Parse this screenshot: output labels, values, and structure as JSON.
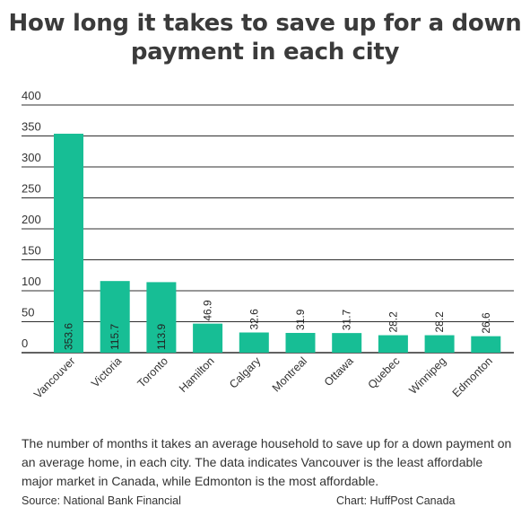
{
  "colors": {
    "bar": "#17be95",
    "grid": "#2f2f2f",
    "text": "#333333"
  },
  "chart_data": {
    "type": "bar",
    "title": "How long it takes to save up for a down payment in each city",
    "categories": [
      "Vancouver",
      "Victoria",
      "Toronto",
      "Hamilton",
      "Calgary",
      "Montreal",
      "Ottawa",
      "Quebec",
      "Winnipeg",
      "Edmonton"
    ],
    "values": [
      353.6,
      115.7,
      113.9,
      46.9,
      32.6,
      31.9,
      31.7,
      28.2,
      28.2,
      26.6
    ],
    "data_labels": [
      "353.6",
      "115.7",
      "113.9",
      "46.9",
      "32.6",
      "31.9",
      "31.7",
      "28.2",
      "28.2",
      "26.6"
    ],
    "yticks": [
      "0",
      "50",
      "100",
      "150",
      "200",
      "250",
      "300",
      "350",
      "400"
    ],
    "ylim": [
      0,
      400
    ],
    "xlabel": "",
    "ylabel": "",
    "grid": true,
    "legend": "none"
  },
  "caption": "The number of months it takes an average household to save up for a down payment on an average home, in each city. The data indicates Vancouver is the least affordable major market in Canada, while Edmonton is the most affordable.",
  "source": "Source: National Bank Financial",
  "credit": "Chart: HuffPost Canada"
}
